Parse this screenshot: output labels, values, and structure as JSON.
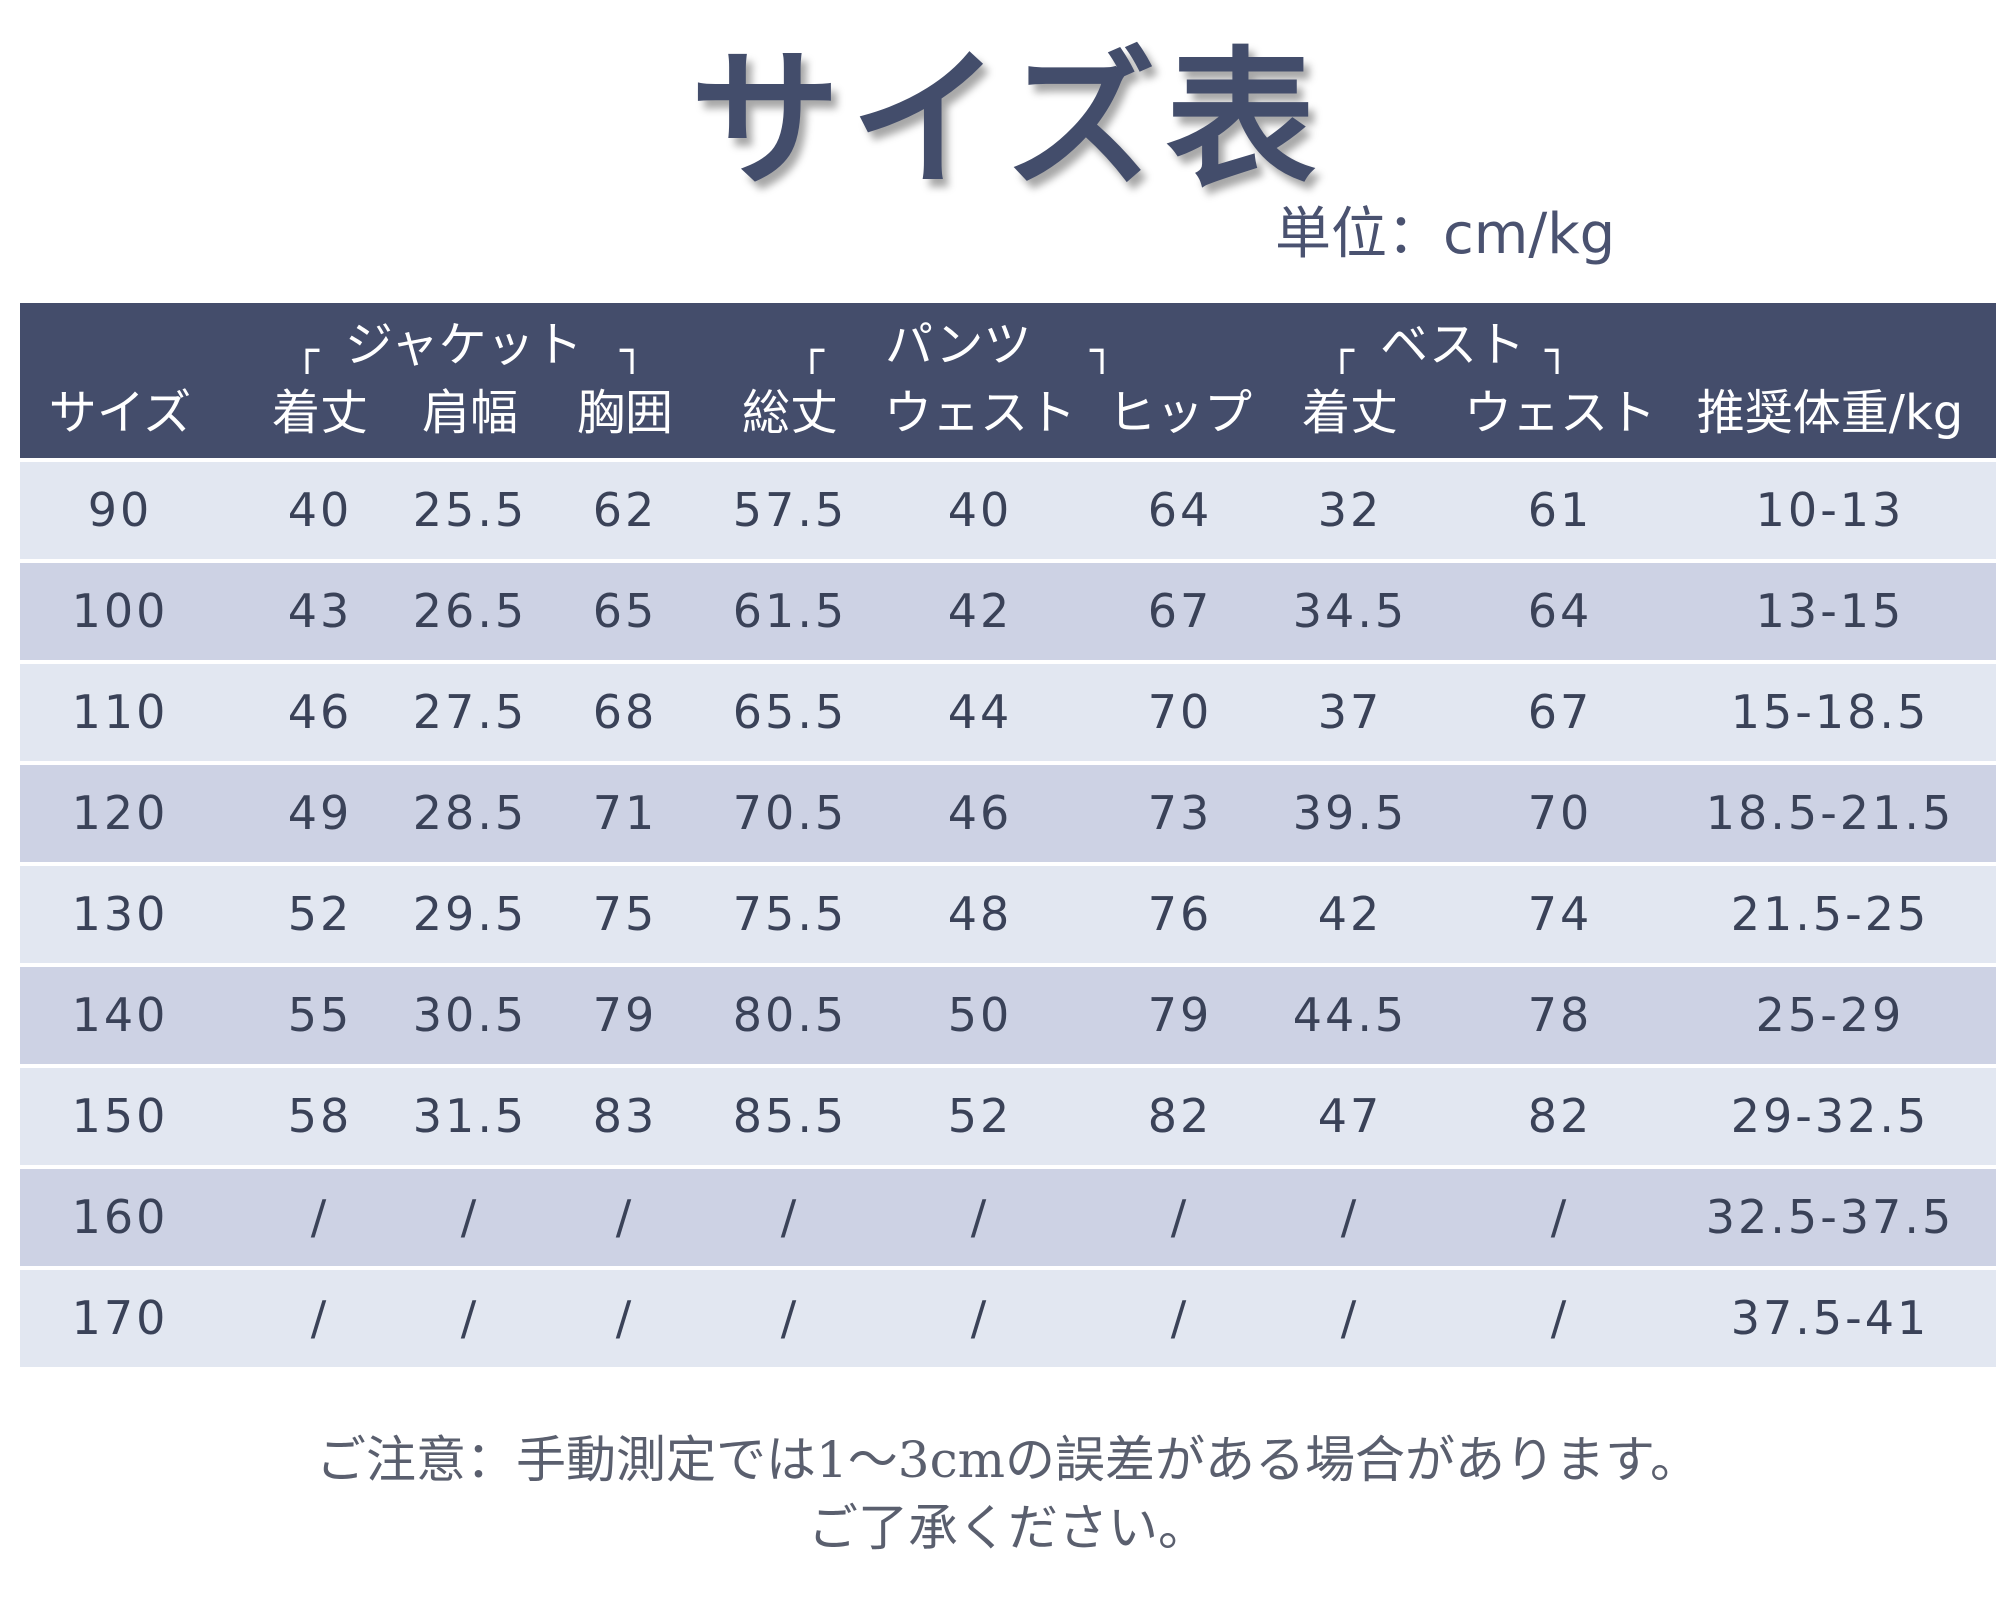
{
  "title": "サイズ表",
  "unit": "単位：cm/kg",
  "groups": {
    "jacket": "ジャケット",
    "pants": "パンツ",
    "vest": "ベスト"
  },
  "bracket_open": "┌",
  "bracket_close": "┐",
  "headers": [
    "サイズ",
    "着丈",
    "肩幅",
    "胸囲",
    "総丈",
    "ウェスト",
    "ヒップ",
    "着丈",
    "ウェスト",
    "推奨体重/kg"
  ],
  "rows": [
    [
      "90",
      "40",
      "25.5",
      "62",
      "57.5",
      "40",
      "64",
      "32",
      "61",
      "10-13"
    ],
    [
      "100",
      "43",
      "26.5",
      "65",
      "61.5",
      "42",
      "67",
      "34.5",
      "64",
      "13-15"
    ],
    [
      "110",
      "46",
      "27.5",
      "68",
      "65.5",
      "44",
      "70",
      "37",
      "67",
      "15-18.5"
    ],
    [
      "120",
      "49",
      "28.5",
      "71",
      "70.5",
      "46",
      "73",
      "39.5",
      "70",
      "18.5-21.5"
    ],
    [
      "130",
      "52",
      "29.5",
      "75",
      "75.5",
      "48",
      "76",
      "42",
      "74",
      "21.5-25"
    ],
    [
      "140",
      "55",
      "30.5",
      "79",
      "80.5",
      "50",
      "79",
      "44.5",
      "78",
      "25-29"
    ],
    [
      "150",
      "58",
      "31.5",
      "83",
      "85.5",
      "52",
      "82",
      "47",
      "82",
      "29-32.5"
    ],
    [
      "160",
      "/",
      "/",
      "/",
      "/",
      "/",
      "/",
      "/",
      "/",
      "32.5-37.5"
    ],
    [
      "170",
      "/",
      "/",
      "/",
      "/",
      "/",
      "/",
      "/",
      "/",
      "37.5-41"
    ]
  ],
  "note_line1": "ご注意：手動測定では1～3cmの誤差がある場合があります。",
  "note_line2": "ご了承ください。",
  "colors": {
    "header_bg": "#444d6b",
    "row_light": "#e2e7f1",
    "row_dark": "#cdd2e4",
    "title": "#434d6b"
  }
}
